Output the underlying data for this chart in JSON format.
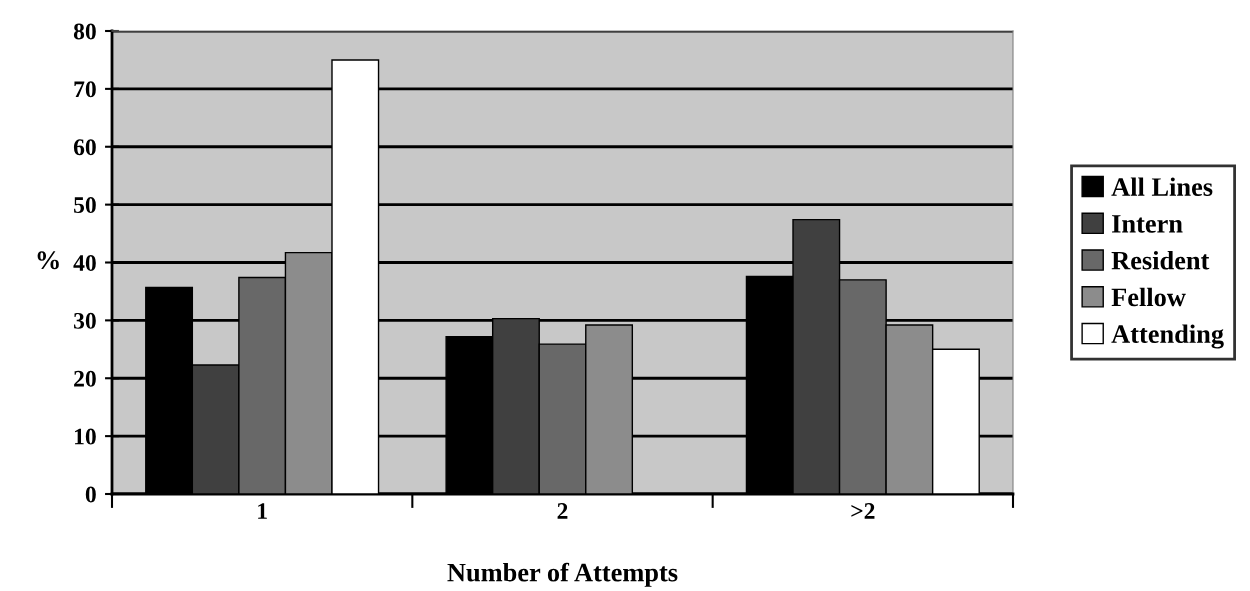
{
  "chart_data": {
    "type": "bar",
    "xlabel": "Number of Attempts",
    "ylabel": "%",
    "categories": [
      "1",
      "2",
      ">2"
    ],
    "series": [
      {
        "name": "All Lines",
        "color": "#000000",
        "values": [
          35.7,
          27.2,
          37.6
        ]
      },
      {
        "name": "Intern",
        "color": "#404040",
        "values": [
          22.3,
          30.3,
          47.4
        ]
      },
      {
        "name": "Resident",
        "color": "#686868",
        "values": [
          37.4,
          25.9,
          37.0
        ]
      },
      {
        "name": "Fellow",
        "color": "#8c8c8c",
        "values": [
          41.7,
          29.2,
          29.2
        ]
      },
      {
        "name": "Attending",
        "color": "#ffffff",
        "values": [
          75,
          null,
          25
        ]
      }
    ],
    "ylim": [
      0,
      80
    ],
    "yticks": [
      0,
      10,
      20,
      30,
      40,
      50,
      60,
      70,
      80
    ],
    "grid": "y",
    "legend": "right"
  }
}
